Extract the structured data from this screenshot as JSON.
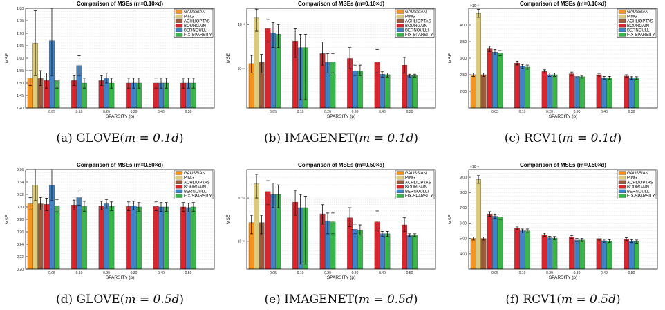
{
  "series_names": [
    "GAUSSIAN",
    "PING",
    "ACHLIOPTAS",
    "BOURGAIN",
    "BERNOULLI",
    "FIX-SPARSITY"
  ],
  "colors": {
    "GAUSSIAN": "#f7941d",
    "PING": "#dccb7a",
    "ACHLIOPTAS": "#9b5a3a",
    "BOURGAIN": "#d9262e",
    "BERNOULLI": "#3f83c6",
    "FIX-SPARSITY": "#39b54a"
  },
  "chart_data": [
    {
      "type": "bar",
      "caption_pre": "(a) GLOVE(",
      "caption_math": "m = 0.1d",
      "caption_post": ")",
      "title": "Comparison of MSEs (m=0.10×d)",
      "xlabel": "SPARSITY (p)",
      "ylabel": "MSE",
      "scale": "linear",
      "ylim": [
        1.4,
        1.8
      ],
      "yticks": [
        1.4,
        1.45,
        1.5,
        1.55,
        1.6,
        1.65,
        1.7,
        1.75,
        1.8
      ],
      "ytick_labels": [
        "1.40",
        "1.45",
        "1.50",
        "1.55",
        "1.60",
        "1.65",
        "1.70",
        "1.75",
        "1.80"
      ],
      "exponent": "",
      "categories": [
        "0.05",
        "0.10",
        "0.20",
        "0.30",
        "0.40",
        "0.50"
      ],
      "baseline": [
        {
          "value": 1.52,
          "err": 0.03
        },
        {
          "value": 1.66,
          "err": 0.13
        },
        {
          "value": 1.52,
          "err": 0.03
        }
      ],
      "groups": [
        [
          {
            "value": 1.51,
            "err": 0.03
          },
          {
            "value": 1.67,
            "err": 0.14
          },
          {
            "value": 1.51,
            "err": 0.03
          }
        ],
        [
          {
            "value": 1.51,
            "err": 0.02
          },
          {
            "value": 1.57,
            "err": 0.04
          },
          {
            "value": 1.5,
            "err": 0.02
          }
        ],
        [
          {
            "value": 1.51,
            "err": 0.02
          },
          {
            "value": 1.52,
            "err": 0.02
          },
          {
            "value": 1.5,
            "err": 0.02
          }
        ],
        [
          {
            "value": 1.5,
            "err": 0.02
          },
          {
            "value": 1.5,
            "err": 0.02
          },
          {
            "value": 1.5,
            "err": 0.02
          }
        ],
        [
          {
            "value": 1.5,
            "err": 0.02
          },
          {
            "value": 1.5,
            "err": 0.02
          },
          {
            "value": 1.5,
            "err": 0.02
          }
        ],
        [
          {
            "value": 1.5,
            "err": 0.02
          },
          {
            "value": 1.5,
            "err": 0.02
          },
          {
            "value": 1.5,
            "err": 0.02
          }
        ]
      ]
    },
    {
      "type": "bar",
      "caption_pre": "(b) IMAGENET(",
      "caption_math": "m = 0.1d",
      "caption_post": ")",
      "title": "Comparison of MSEs (m=0.10×d)",
      "xlabel": "SPARSITY (p)",
      "ylabel": "MSE",
      "scale": "log",
      "ylim": [
        1.3e-05,
        0.0023
      ],
      "yticks": [
        0.0001,
        0.001
      ],
      "ytick_labels": [
        "10⁻⁴",
        "10⁻³"
      ],
      "exponent": "",
      "categories": [
        "0.05",
        "0.10",
        "0.20",
        "0.30",
        "0.40",
        "0.50"
      ],
      "baseline": [
        {
          "value": 0.00013,
          "err": [
            8e-05,
            0.0002
          ]
        },
        {
          "value": 0.0014,
          "err": [
            0.0007,
            0.0022
          ]
        },
        {
          "value": 0.00014,
          "err": [
            8e-05,
            0.00021
          ]
        }
      ],
      "groups": [
        [
          {
            "value": 0.0008,
            "err": [
              0.0004,
              0.0013
            ]
          },
          {
            "value": 0.00065,
            "err": [
              0.0003,
              0.0011
            ]
          },
          {
            "value": 0.0006,
            "err": [
              0.0003,
              0.001
            ]
          }
        ],
        [
          {
            "value": 0.00042,
            "err": [
              0.00018,
              0.0008
            ]
          },
          {
            "value": 0.0003,
            "err": [
              2e-05,
              0.0006
            ]
          },
          {
            "value": 0.0003,
            "err": [
              2e-05,
              0.0006
            ]
          }
        ],
        [
          {
            "value": 0.00022,
            "err": [
              0.00012,
              0.0004
            ]
          },
          {
            "value": 0.00014,
            "err": [
              8e-05,
              0.00022
            ]
          },
          {
            "value": 0.00014,
            "err": [
              8e-05,
              0.00022
            ]
          }
        ],
        [
          {
            "value": 0.00017,
            "err": [
              0.0001,
              0.0003
            ]
          },
          {
            "value": 9e-05,
            "err": [
              7e-05,
              0.00012
            ]
          },
          {
            "value": 9e-05,
            "err": [
              7e-05,
              0.00012
            ]
          }
        ],
        [
          {
            "value": 0.00014,
            "err": [
              8e-05,
              0.00027
            ]
          },
          {
            "value": 7.5e-05,
            "err": [
              6.5e-05,
              8.5e-05
            ]
          },
          {
            "value": 7.3e-05,
            "err": [
              6.5e-05,
              8e-05
            ]
          }
        ],
        [
          {
            "value": 0.00012,
            "err": [
              8e-05,
              0.00018
            ]
          },
          {
            "value": 7e-05,
            "err": [
              6.5e-05,
              7.5e-05
            ]
          },
          {
            "value": 7e-05,
            "err": [
              6.5e-05,
              7.5e-05
            ]
          }
        ]
      ]
    },
    {
      "type": "bar",
      "caption_pre": "(c) RCV1(",
      "caption_math": "m = 0.1d",
      "caption_post": ")",
      "title": "Comparison of MSEs (m=0.10×d)",
      "xlabel": "SPARSITY (p)",
      "ylabel": "MSE",
      "scale": "linear",
      "ylim": [
        1.5,
        4.5
      ],
      "yticks": [
        2.0,
        2.5,
        3.0,
        3.5,
        4.0
      ],
      "ytick_labels": [
        "2.00",
        "2.50",
        "3.00",
        "3.50",
        "4.00"
      ],
      "exponent": "×10⁻³",
      "categories": [
        "0.05",
        "0.10",
        "0.20",
        "0.30",
        "0.40",
        "0.50"
      ],
      "baseline": [
        {
          "value": 2.5,
          "err": 0.05
        },
        {
          "value": 4.35,
          "err": 0.12
        },
        {
          "value": 2.5,
          "err": 0.05
        }
      ],
      "groups": [
        [
          {
            "value": 3.28,
            "err": 0.08
          },
          {
            "value": 3.18,
            "err": 0.08
          },
          {
            "value": 3.15,
            "err": 0.08
          }
        ],
        [
          {
            "value": 2.85,
            "err": 0.06
          },
          {
            "value": 2.75,
            "err": 0.06
          },
          {
            "value": 2.73,
            "err": 0.06
          }
        ],
        [
          {
            "value": 2.6,
            "err": 0.05
          },
          {
            "value": 2.5,
            "err": 0.05
          },
          {
            "value": 2.5,
            "err": 0.05
          }
        ],
        [
          {
            "value": 2.53,
            "err": 0.05
          },
          {
            "value": 2.45,
            "err": 0.04
          },
          {
            "value": 2.44,
            "err": 0.04
          }
        ],
        [
          {
            "value": 2.5,
            "err": 0.04
          },
          {
            "value": 2.41,
            "err": 0.04
          },
          {
            "value": 2.41,
            "err": 0.04
          }
        ],
        [
          {
            "value": 2.46,
            "err": 0.04
          },
          {
            "value": 2.4,
            "err": 0.04
          },
          {
            "value": 2.4,
            "err": 0.04
          }
        ]
      ]
    },
    {
      "type": "bar",
      "caption_pre": "(d) GLOVE(",
      "caption_math": "m = 0.5d",
      "caption_post": ")",
      "title": "Comparison of MSEs (m=0.50×d)",
      "xlabel": "SPARSITY (p)",
      "ylabel": "MSE",
      "scale": "linear",
      "ylim": [
        0.2,
        0.36
      ],
      "yticks": [
        0.2,
        0.22,
        0.24,
        0.26,
        0.28,
        0.3,
        0.32,
        0.34,
        0.36
      ],
      "ytick_labels": [
        "0.20",
        "0.22",
        "0.24",
        "0.26",
        "0.28",
        "0.30",
        "0.32",
        "0.34",
        "0.36"
      ],
      "exponent": "",
      "categories": [
        "0.05",
        "0.10",
        "0.20",
        "0.30",
        "0.40",
        "0.50"
      ],
      "baseline": [
        {
          "value": 0.305,
          "err": 0.01
        },
        {
          "value": 0.335,
          "err": 0.025
        },
        {
          "value": 0.305,
          "err": 0.01
        }
      ],
      "groups": [
        [
          {
            "value": 0.304,
            "err": 0.01
          },
          {
            "value": 0.335,
            "err": 0.025
          },
          {
            "value": 0.302,
            "err": 0.01
          }
        ],
        [
          {
            "value": 0.303,
            "err": 0.008
          },
          {
            "value": 0.315,
            "err": 0.012
          },
          {
            "value": 0.301,
            "err": 0.008
          }
        ],
        [
          {
            "value": 0.302,
            "err": 0.007
          },
          {
            "value": 0.305,
            "err": 0.007
          },
          {
            "value": 0.301,
            "err": 0.007
          }
        ],
        [
          {
            "value": 0.301,
            "err": 0.007
          },
          {
            "value": 0.302,
            "err": 0.007
          },
          {
            "value": 0.3,
            "err": 0.007
          }
        ],
        [
          {
            "value": 0.301,
            "err": 0.007
          },
          {
            "value": 0.3,
            "err": 0.007
          },
          {
            "value": 0.3,
            "err": 0.007
          }
        ],
        [
          {
            "value": 0.3,
            "err": 0.007
          },
          {
            "value": 0.299,
            "err": 0.007
          },
          {
            "value": 0.3,
            "err": 0.007
          }
        ]
      ]
    },
    {
      "type": "bar",
      "caption_pre": "(e) IMAGENET(",
      "caption_math": "m = 0.5d",
      "caption_post": ")",
      "title": "Comparison of MSEs (m=0.50×d)",
      "xlabel": "SPARSITY (p)",
      "ylabel": "MSE",
      "scale": "log",
      "ylim": [
        2.3e-06,
        0.00045
      ],
      "yticks": [
        1e-05,
        0.0001
      ],
      "ytick_labels": [
        "10⁻⁵",
        "10⁻⁴"
      ],
      "exponent": "",
      "categories": [
        "0.05",
        "0.10",
        "0.20",
        "0.30",
        "0.40",
        "0.50"
      ],
      "baseline": [
        {
          "value": 2.7e-05,
          "err": [
            1.5e-05,
            4e-05
          ]
        },
        {
          "value": 0.00021,
          "err": [
            0.0001,
            0.00035
          ]
        },
        {
          "value": 2.7e-05,
          "err": [
            1.5e-05,
            4e-05
          ]
        }
      ],
      "groups": [
        [
          {
            "value": 0.00014,
            "err": [
              7e-05,
              0.00025
            ]
          },
          {
            "value": 0.00012,
            "err": [
              6e-05,
              0.00022
            ]
          },
          {
            "value": 0.00012,
            "err": [
              6e-05,
              0.0002
            ]
          }
        ],
        [
          {
            "value": 8e-05,
            "err": [
              4e-05,
              0.00015
            ]
          },
          {
            "value": 6e-05,
            "err": [
              3e-06,
              0.00012
            ]
          },
          {
            "value": 6e-05,
            "err": [
              3e-06,
              0.00011
            ]
          }
        ],
        [
          {
            "value": 4.3e-05,
            "err": [
              2.5e-05,
              7e-05
            ]
          },
          {
            "value": 2.9e-05,
            "err": [
              1.5e-05,
              4.5e-05
            ]
          },
          {
            "value": 2.8e-05,
            "err": [
              1.5e-05,
              4.5e-05
            ]
          }
        ],
        [
          {
            "value": 3.5e-05,
            "err": [
              2.2e-05,
              6e-05
            ]
          },
          {
            "value": 1.9e-05,
            "err": [
              1.5e-05,
              2.5e-05
            ]
          },
          {
            "value": 1.8e-05,
            "err": [
              1.4e-05,
              2.4e-05
            ]
          }
        ],
        [
          {
            "value": 2.8e-05,
            "err": [
              1.8e-05,
              5e-05
            ]
          },
          {
            "value": 1.5e-05,
            "err": [
              1.3e-05,
              1.7e-05
            ]
          },
          {
            "value": 1.5e-05,
            "err": [
              1.3e-05,
              1.7e-05
            ]
          }
        ],
        [
          {
            "value": 2.4e-05,
            "err": [
              1.7e-05,
              3.5e-05
            ]
          },
          {
            "value": 1.4e-05,
            "err": [
              1.3e-05,
              1.5e-05
            ]
          },
          {
            "value": 1.4e-05,
            "err": [
              1.3e-05,
              1.5e-05
            ]
          }
        ]
      ]
    },
    {
      "type": "bar",
      "caption_pre": "(f) RCV1(",
      "caption_math": "m = 0.5d",
      "caption_post": ")",
      "title": "Comparison of MSEs (m=0.50×d)",
      "xlabel": "SPARSITY (p)",
      "ylabel": "MSE",
      "scale": "linear",
      "ylim": [
        3.0,
        9.5
      ],
      "yticks": [
        4.0,
        5.0,
        6.0,
        7.0,
        8.0,
        9.0
      ],
      "ytick_labels": [
        "4.00",
        "5.00",
        "6.00",
        "7.00",
        "8.00",
        "9.00"
      ],
      "exponent": "×10⁻⁴",
      "categories": [
        "0.05",
        "0.10",
        "0.20",
        "0.30",
        "0.40",
        "0.50"
      ],
      "baseline": [
        {
          "value": 5.0,
          "err": 0.1
        },
        {
          "value": 8.85,
          "err": 0.25
        },
        {
          "value": 5.0,
          "err": 0.1
        }
      ],
      "groups": [
        [
          {
            "value": 6.6,
            "err": 0.15
          },
          {
            "value": 6.45,
            "err": 0.15
          },
          {
            "value": 6.4,
            "err": 0.15
          }
        ],
        [
          {
            "value": 5.7,
            "err": 0.12
          },
          {
            "value": 5.5,
            "err": 0.12
          },
          {
            "value": 5.5,
            "err": 0.12
          }
        ],
        [
          {
            "value": 5.25,
            "err": 0.1
          },
          {
            "value": 5.05,
            "err": 0.1
          },
          {
            "value": 5.03,
            "err": 0.1
          }
        ],
        [
          {
            "value": 5.1,
            "err": 0.1
          },
          {
            "value": 4.9,
            "err": 0.1
          },
          {
            "value": 4.9,
            "err": 0.1
          }
        ],
        [
          {
            "value": 5.0,
            "err": 0.1
          },
          {
            "value": 4.85,
            "err": 0.1
          },
          {
            "value": 4.83,
            "err": 0.1
          }
        ],
        [
          {
            "value": 4.95,
            "err": 0.1
          },
          {
            "value": 4.83,
            "err": 0.1
          },
          {
            "value": 4.8,
            "err": 0.1
          }
        ]
      ]
    }
  ]
}
